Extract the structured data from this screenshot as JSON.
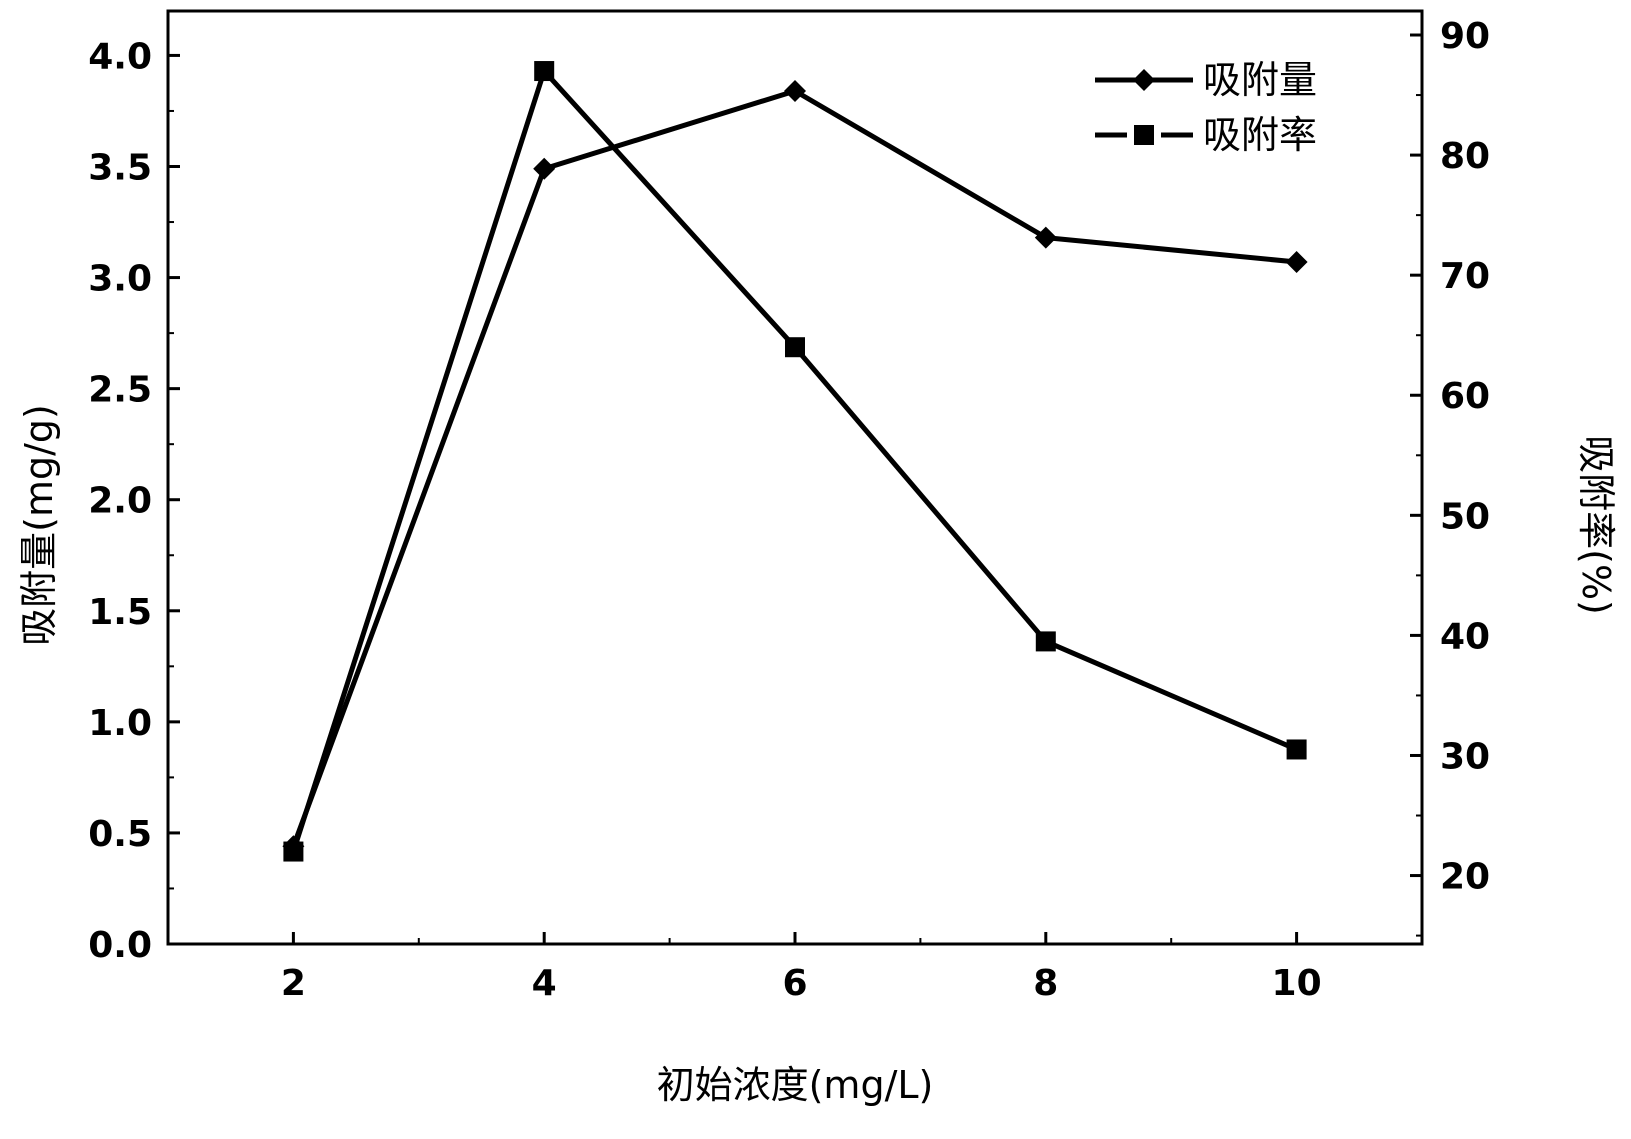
{
  "chart_data": {
    "type": "line",
    "title": "",
    "xlabel": "初始浓度(mg/L)",
    "ylabel_left": "吸附量(mg/g)",
    "ylabel_right": "吸附率(%)",
    "x": [
      2,
      4,
      6,
      8,
      10
    ],
    "x_ticks": [
      "2",
      "4",
      "6",
      "8",
      "10"
    ],
    "xlim": [
      1,
      11
    ],
    "ylim_left": [
      0,
      4.2
    ],
    "ylim_right": [
      14.3,
      92
    ],
    "y_ticks_left": [
      "0.0",
      "0.5",
      "1.0",
      "1.5",
      "2.0",
      "2.5",
      "3.0",
      "3.5",
      "4.0"
    ],
    "y_ticks_right": [
      "20",
      "30",
      "40",
      "50",
      "60",
      "70",
      "80",
      "90"
    ],
    "grid": false,
    "legend_position": "top-right",
    "series": [
      {
        "name": "吸附量",
        "axis": "left",
        "marker": "diamond",
        "line": "solid",
        "values": [
          0.44,
          3.49,
          3.84,
          3.18,
          3.07
        ]
      },
      {
        "name": "吸附率",
        "axis": "right",
        "marker": "square",
        "line": "dashed",
        "values": [
          22,
          87,
          64,
          39.5,
          30.5
        ]
      }
    ]
  }
}
